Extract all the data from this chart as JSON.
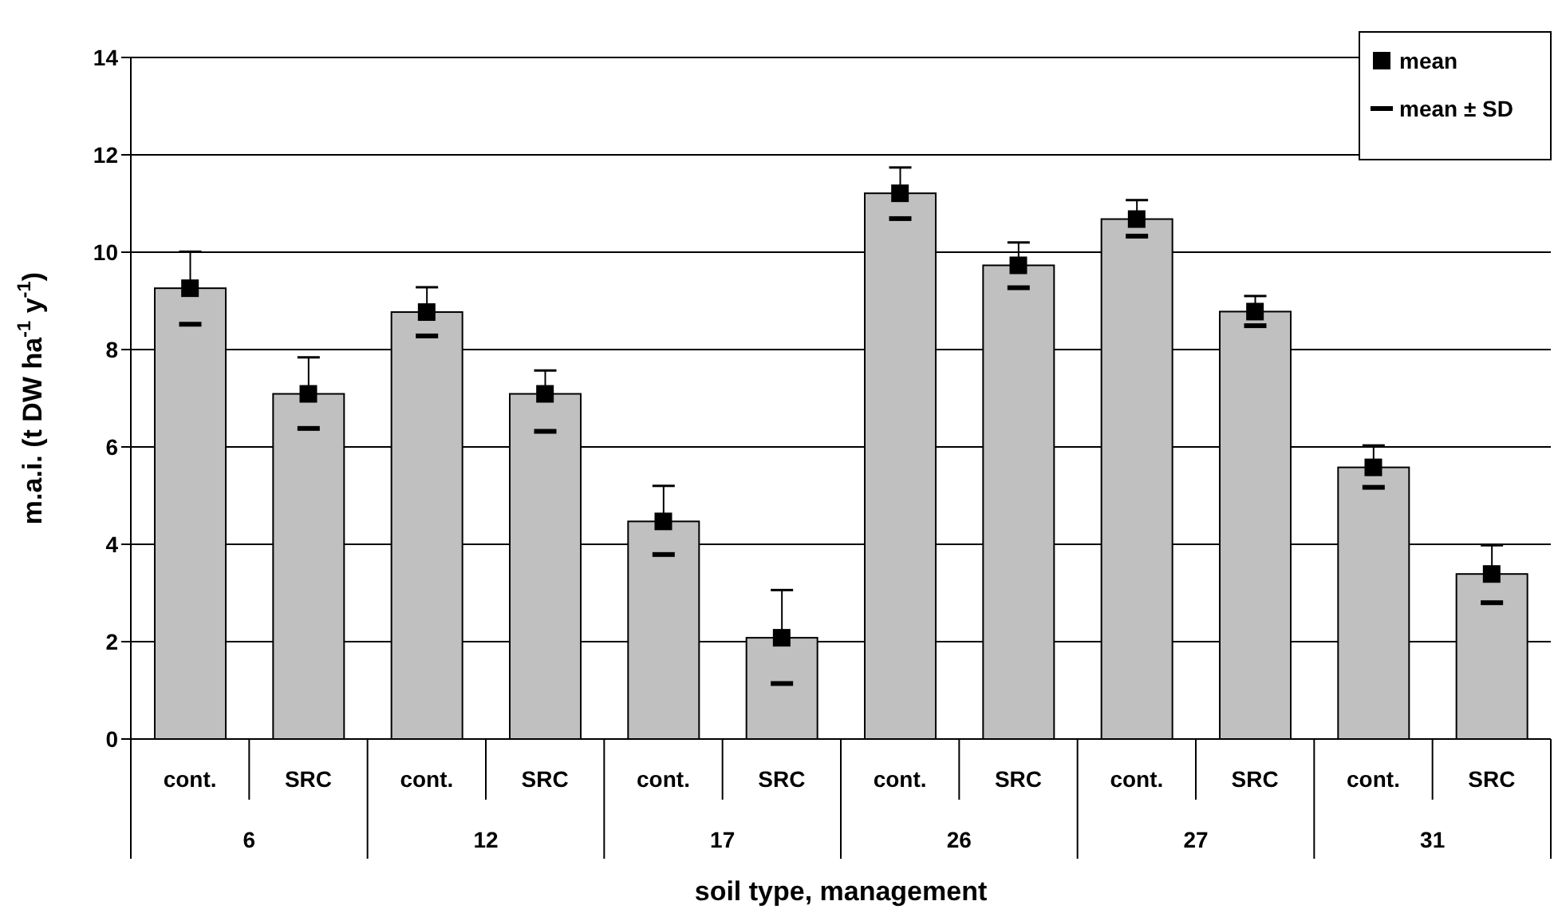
{
  "chart_data": {
    "type": "bar",
    "xlabel": "soil type, management",
    "ylabel": "m.a.i. (t DW ha$^{-1}$ y$^{-1}$)",
    "categories": [
      "cont.",
      "SRC",
      "cont.",
      "SRC",
      "cont.",
      "SRC",
      "cont.",
      "SRC",
      "cont.",
      "SRC",
      "cont.",
      "SRC"
    ],
    "annotations": [
      "6",
      "12",
      "17",
      "26",
      "27",
      "31",
      "mean ± SD"
    ],
    "series": [
      {
        "color": "#c0c0c0",
        "values": [
          9.26,
          7.09,
          8.77,
          7.09,
          4.47,
          2.08,
          11.21,
          9.73,
          10.68,
          8.78,
          5.58,
          3.39
        ],
        "errors": [
          [
            8.52,
            10.01
          ],
          [
            6.38,
            7.84
          ],
          [
            8.28,
            9.28
          ],
          [
            6.32,
            7.57
          ],
          [
            3.79,
            5.2
          ],
          [
            1.14,
            3.06
          ],
          [
            10.69,
            11.74
          ],
          [
            9.27,
            10.2
          ],
          [
            10.33,
            11.07
          ],
          [
            8.49,
            9.1
          ],
          [
            5.17,
            6.03
          ],
          [
            2.8,
            3.98
          ]
        ]
      },
      {
        "type": "scatter",
        "name": "mean",
        "color": "#000000",
        "marker": "square",
        "values": [
          9.26,
          7.09,
          8.77,
          7.09,
          4.47,
          2.08,
          11.21,
          9.73,
          10.68,
          8.78,
          5.58,
          3.39
        ]
      }
    ],
    "ylim": [
      0,
      14
    ],
    "yticks": [
      0,
      2,
      4,
      6,
      8,
      10,
      12,
      14
    ],
    "grid": "y",
    "legend": "top right"
  }
}
